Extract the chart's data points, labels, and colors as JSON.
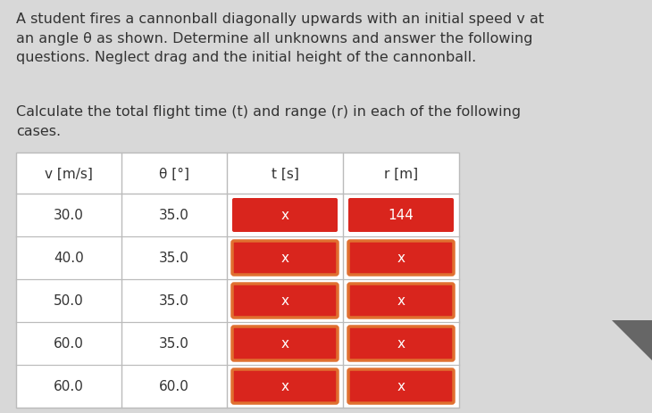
{
  "paragraph1": "A student fires a cannonball diagonally upwards with an initial speed v at\nan angle θ as shown. Determine all unknowns and answer the following\nquestions. Neglect drag and the initial height of the cannonball.",
  "paragraph2": "Calculate the total flight time (t) and range (r) in each of the following\ncases.",
  "headers": [
    "v [m/s]",
    "θ [°]",
    "t [s]",
    "r [m]"
  ],
  "rows": [
    [
      "30.0",
      "35.0",
      "x",
      "144"
    ],
    [
      "40.0",
      "35.0",
      "x",
      "x"
    ],
    [
      "50.0",
      "35.0",
      "x",
      "x"
    ],
    [
      "60.0",
      "35.0",
      "x",
      "x"
    ],
    [
      "60.0",
      "60.0",
      "x",
      "x"
    ]
  ],
  "cell_types": [
    [
      "normal",
      "normal",
      "red_x_plain",
      "red_num_plain"
    ],
    [
      "normal",
      "normal",
      "red_x_border",
      "red_x_border"
    ],
    [
      "normal",
      "normal",
      "red_x_border",
      "red_x_border"
    ],
    [
      "normal",
      "normal",
      "red_x_border",
      "red_x_border"
    ],
    [
      "normal",
      "normal",
      "red_x_border",
      "red_x_border"
    ]
  ],
  "red_color": "#d9251d",
  "red_border_color": "#e07030",
  "bg_color": "#d8d8d8",
  "text_color": "#333333",
  "white": "#ffffff",
  "table_border_color": "#bbbbbb",
  "font_size_text": 11.5,
  "font_size_table": 11,
  "fig_bg": "#d8d8d8"
}
